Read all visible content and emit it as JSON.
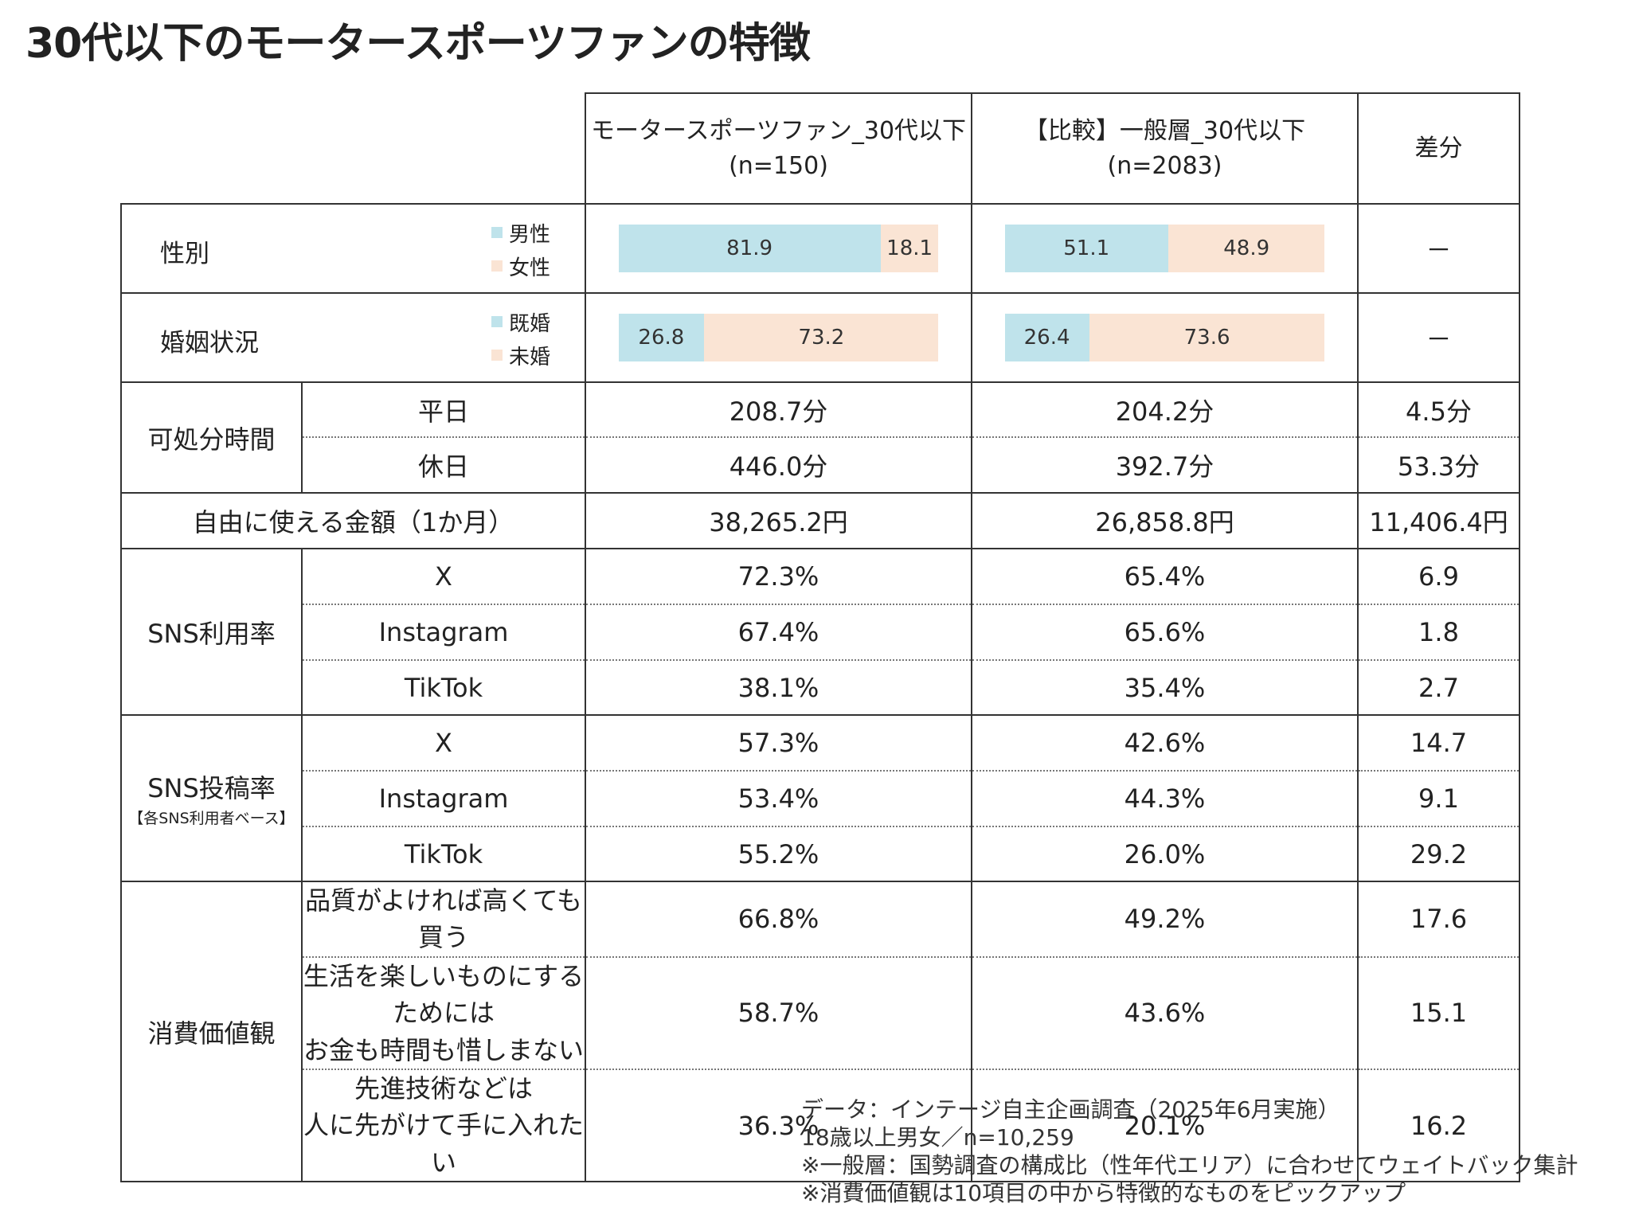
{
  "title": "30代以下のモータースポーツファンの特徴",
  "colors": {
    "male_or_married": "#bfe3eb",
    "female_or_single": "#fae4d4"
  },
  "header": {
    "col1_line1": "モータースポーツファン_30代以下",
    "col1_line2": "(n=150)",
    "col2_line1": "【比較】一般層_30代以下",
    "col2_line2": "(n=2083)",
    "col3": "差分"
  },
  "gender": {
    "label": "性別",
    "legend_a": "男性",
    "legend_b": "女性",
    "fan": {
      "a": "81.9",
      "b": "18.1"
    },
    "general": {
      "a": "51.1",
      "b": "48.9"
    },
    "diff": "－"
  },
  "marital": {
    "label": "婚姻状況",
    "legend_a": "既婚",
    "legend_b": "未婚",
    "fan": {
      "a": "26.8",
      "b": "73.2"
    },
    "general": {
      "a": "26.4",
      "b": "73.6"
    },
    "diff": "－"
  },
  "free_time": {
    "label": "可処分時間",
    "rows": [
      {
        "sub": "平日",
        "fan": "208.7分",
        "general": "204.2分",
        "diff": "4.5分"
      },
      {
        "sub": "休日",
        "fan": "446.0分",
        "general": "392.7分",
        "diff": "53.3分"
      }
    ]
  },
  "money": {
    "label": "自由に使える金額（1か月）",
    "fan": "38,265.2円",
    "general": "26,858.8円",
    "diff": "11,406.4円"
  },
  "sns_use": {
    "label": "SNS利用率",
    "rows": [
      {
        "sub": "X",
        "fan": "72.3%",
        "general": "65.4%",
        "diff": "6.9"
      },
      {
        "sub": "Instagram",
        "fan": "67.4%",
        "general": "65.6%",
        "diff": "1.8"
      },
      {
        "sub": "TikTok",
        "fan": "38.1%",
        "general": "35.4%",
        "diff": "2.7"
      }
    ]
  },
  "sns_post": {
    "label": "SNS投稿率",
    "note": "【各SNS利用者ベース】",
    "rows": [
      {
        "sub": "X",
        "fan": "57.3%",
        "general": "42.6%",
        "diff": "14.7"
      },
      {
        "sub": "Instagram",
        "fan": "53.4%",
        "general": "44.3%",
        "diff": "9.1"
      },
      {
        "sub": "TikTok",
        "fan": "55.2%",
        "general": "26.0%",
        "diff": "29.2"
      }
    ]
  },
  "values": {
    "label": "消費価値観",
    "rows": [
      {
        "sub1": "品質がよければ高くても買う",
        "sub2": "",
        "fan": "66.8%",
        "general": "49.2%",
        "diff": "17.6"
      },
      {
        "sub1": "生活を楽しいものにするためには",
        "sub2": "お金も時間も惜しまない",
        "fan": "58.7%",
        "general": "43.6%",
        "diff": "15.1"
      },
      {
        "sub1": "先進技術などは",
        "sub2": "人に先がけて手に入れたい",
        "fan": "36.3%",
        "general": "20.1%",
        "diff": "16.2"
      }
    ]
  },
  "notes": {
    "line1": "データ：インテージ自主企画調査（2025年6月実施）",
    "line2": "18歳以上男女／n=10,259",
    "line3": "※一般層：国勢調査の構成比（性年代エリア）に合わせてウェイトバック集計",
    "line4": "※消費価値観は10項目の中から特徴的なものをピックアップ"
  },
  "chart_data": {
    "type": "bar",
    "title": "30代以下のモータースポーツファンの特徴",
    "charts": [
      {
        "name": "性別",
        "categories": [
          "モータースポーツファン_30代以下",
          "【比較】一般層_30代以下"
        ],
        "series": [
          {
            "name": "男性",
            "values": [
              81.9,
              51.1
            ]
          },
          {
            "name": "女性",
            "values": [
              18.1,
              48.9
            ]
          }
        ],
        "stacked": true,
        "ylim": [
          0,
          100
        ]
      },
      {
        "name": "婚姻状況",
        "categories": [
          "モータースポーツファン_30代以下",
          "【比較】一般層_30代以下"
        ],
        "series": [
          {
            "name": "既婚",
            "values": [
              26.8,
              26.4
            ]
          },
          {
            "name": "未婚",
            "values": [
              73.2,
              73.6
            ]
          }
        ],
        "stacked": true,
        "ylim": [
          0,
          100
        ]
      }
    ]
  }
}
